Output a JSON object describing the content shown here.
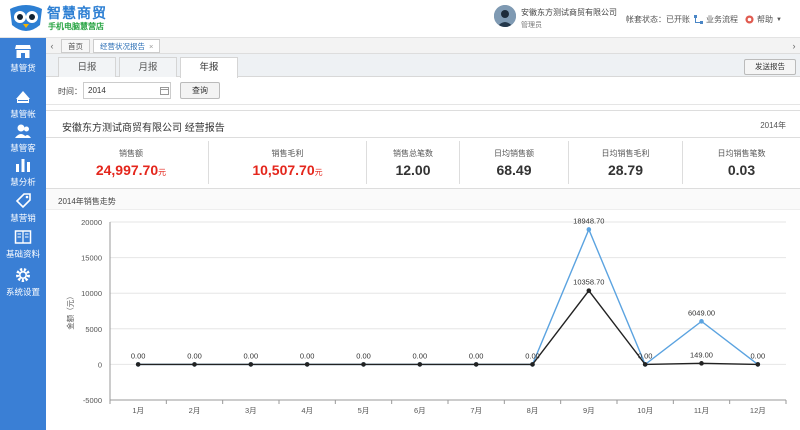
{
  "header": {
    "brand_title": "智慧商贸",
    "brand_subtitle": "手机电脑慧营店",
    "company": "安徽东方测试商贸有限公司",
    "role": "管理员",
    "account_status_label": "帐套状态：已开账",
    "business_flow_label": "业务流程",
    "help_label": "帮助"
  },
  "sidebar": {
    "items": [
      {
        "label": "慧管货",
        "icon": "store-icon"
      },
      {
        "label": "慧管帐",
        "icon": "ledger-icon"
      },
      {
        "label": "慧管客",
        "icon": "customers-icon"
      },
      {
        "label": "慧分析",
        "icon": "bar-chart-icon"
      },
      {
        "label": "慧营销",
        "icon": "tag-icon"
      },
      {
        "label": "基础资料",
        "icon": "book-icon"
      },
      {
        "label": "系统设置",
        "icon": "gear-icon"
      }
    ]
  },
  "tabs": {
    "home": "首页",
    "report": "经营状况报告",
    "close": "×"
  },
  "period_tabs": [
    "日报",
    "月报",
    "年报"
  ],
  "send_report_label": "发送报告",
  "filter": {
    "time_label": "时间：",
    "date_value": "2014",
    "query_label": "查询"
  },
  "report": {
    "title": "安徽东方测试商贸有限公司 经营报告",
    "year": "2014年"
  },
  "stats": [
    {
      "label": "销售额",
      "value": "24,997.70",
      "unit": "元",
      "highlight": true
    },
    {
      "label": "销售毛利",
      "value": "10,507.70",
      "unit": "元",
      "highlight": true
    },
    {
      "label": "销售总笔数",
      "value": "12.00",
      "unit": "",
      "highlight": false
    },
    {
      "label": "日均销售额",
      "value": "68.49",
      "unit": "元",
      "highlight": false
    },
    {
      "label": "日均销售毛利",
      "value": "28.79",
      "unit": "元",
      "highlight": false
    },
    {
      "label": "日均销售笔数",
      "value": "0.03",
      "unit": "",
      "highlight": false
    }
  ],
  "chart_section_title": "2014年销售走势",
  "chart_data": {
    "type": "line",
    "categories": [
      "1月",
      "2月",
      "3月",
      "4月",
      "5月",
      "6月",
      "7月",
      "8月",
      "9月",
      "10月",
      "11月",
      "12月"
    ],
    "series": [
      {
        "values": [
          0,
          0,
          0,
          0,
          0,
          0,
          0,
          0,
          18948.7,
          0,
          6049.0,
          0
        ],
        "color": "#5ba3e0"
      },
      {
        "values": [
          0,
          0,
          0,
          0,
          0,
          0,
          0,
          0,
          10358.7,
          0,
          149.0,
          0
        ],
        "color": "#222222"
      }
    ],
    "data_labels": [
      "0.00",
      "0.00",
      "0.00",
      "0.00",
      "0.00",
      "0.00",
      "0.00",
      "0.00",
      "18948.70",
      "0.00",
      "6049.00",
      "0.00"
    ],
    "secondary_labels": [
      {
        "index": 8,
        "text": "10358.70"
      },
      {
        "index": 10,
        "text": "149.00"
      }
    ],
    "ylabel": "金额（元）",
    "ylim": [
      -5000,
      20000
    ],
    "yticks": [
      -5000,
      0,
      5000,
      10000,
      15000,
      20000
    ],
    "grid": true
  }
}
